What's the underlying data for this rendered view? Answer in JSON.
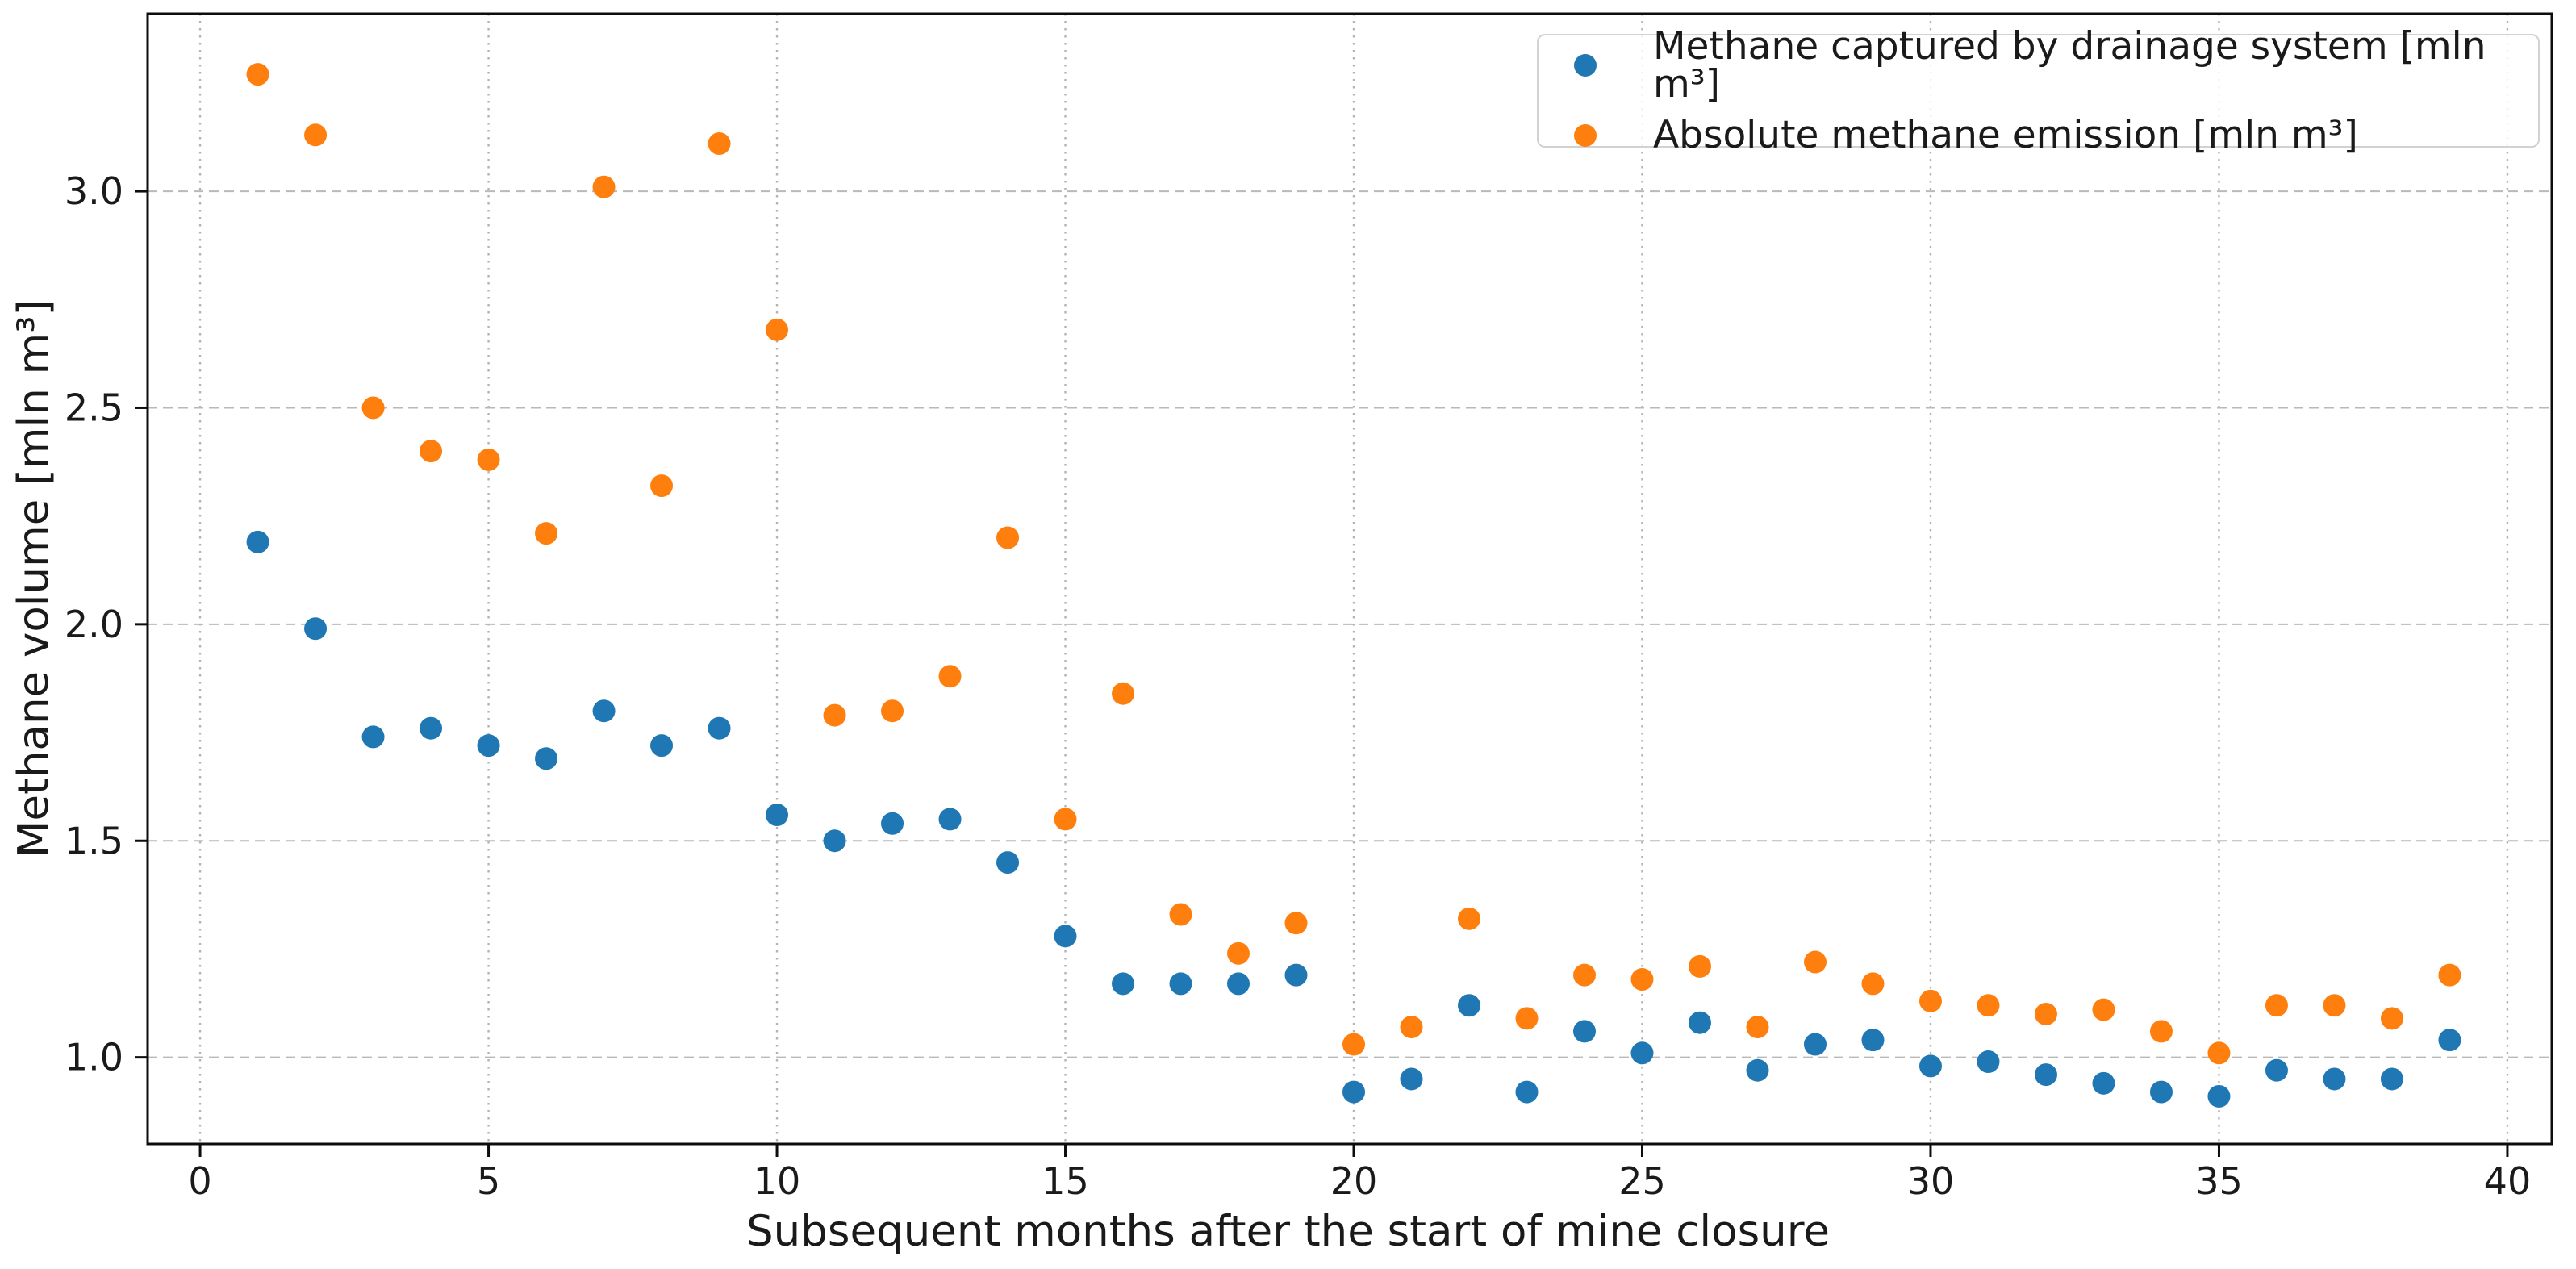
{
  "chart_data": {
    "type": "scatter",
    "title": "",
    "xlabel": "Subsequent months after the start of mine closure",
    "ylabel": "Methane volume [mln m³]",
    "x": [
      1,
      2,
      3,
      4,
      5,
      6,
      7,
      8,
      9,
      10,
      11,
      12,
      13,
      14,
      15,
      16,
      17,
      18,
      19,
      20,
      21,
      22,
      23,
      24,
      25,
      26,
      27,
      28,
      29,
      30,
      31,
      32,
      33,
      34,
      35,
      36,
      37,
      38,
      39
    ],
    "series": [
      {
        "name": "Methane captured by drainage system [mln m³]",
        "color": "#1f77b4",
        "values": [
          2.19,
          1.99,
          1.74,
          1.76,
          1.72,
          1.69,
          1.8,
          1.72,
          1.76,
          1.56,
          1.5,
          1.54,
          1.55,
          1.45,
          1.28,
          1.17,
          1.17,
          1.17,
          1.19,
          0.92,
          0.95,
          1.12,
          0.92,
          1.06,
          1.01,
          1.08,
          0.97,
          1.03,
          1.04,
          0.98,
          0.99,
          0.96,
          0.94,
          0.92,
          0.91,
          0.97,
          0.95,
          0.95,
          1.04
        ]
      },
      {
        "name": "Absolute methane emission [mln m³]",
        "color": "#ff7f0e",
        "values": [
          3.27,
          3.13,
          2.5,
          2.4,
          2.38,
          2.21,
          3.01,
          2.32,
          3.11,
          2.68,
          1.79,
          1.8,
          1.88,
          2.2,
          1.55,
          1.84,
          1.33,
          1.24,
          1.31,
          1.03,
          1.07,
          1.32,
          1.09,
          1.19,
          1.18,
          1.21,
          1.07,
          1.22,
          1.17,
          1.13,
          1.12,
          1.1,
          1.11,
          1.06,
          1.01,
          1.12,
          1.12,
          1.09,
          1.19
        ]
      }
    ],
    "x_ticks": {
      "values": [
        0,
        5,
        10,
        15,
        20,
        25,
        30,
        35,
        40
      ],
      "labels": [
        "0",
        "5",
        "10",
        "15",
        "20",
        "25",
        "30",
        "35",
        "40"
      ]
    },
    "y_ticks": {
      "values": [
        1.0,
        1.5,
        2.0,
        2.5,
        3.0
      ],
      "labels": [
        "1.0",
        "1.5",
        "2.0",
        "2.5",
        "3.0"
      ]
    },
    "xlim": [
      -0.91,
      40.77
    ],
    "ylim": [
      0.8,
      3.41
    ],
    "grid": true,
    "legend_position": "upper right",
    "marker": "circle",
    "background": "#ffffff",
    "grid_color": "#b9b9b9",
    "spine_color": "#0d0d0d"
  }
}
